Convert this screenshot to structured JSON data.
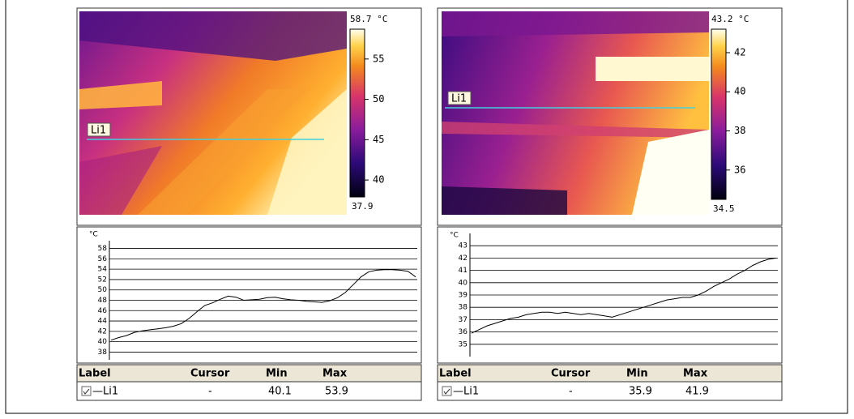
{
  "panels": [
    {
      "line_label": "Li1",
      "colorbar": {
        "max_label": "58.7 °C",
        "min_label": "37.9",
        "lim": [
          37.9,
          58.7
        ],
        "ticks": [
          55,
          50,
          45,
          40
        ]
      },
      "table": {
        "headers": [
          "Label",
          "Cursor",
          "Min",
          "Max"
        ],
        "rows": [
          [
            "—Li1",
            "-",
            "40.1",
            "53.9"
          ]
        ]
      }
    },
    {
      "line_label": "Li1",
      "colorbar": {
        "max_label": "43.2 °C",
        "min_label": "34.5",
        "lim": [
          34.5,
          43.2
        ],
        "ticks": [
          42,
          40,
          38,
          36
        ]
      },
      "table": {
        "headers": [
          "Label",
          "Cursor",
          "Min",
          "Max"
        ],
        "rows": [
          [
            "—Li1",
            "-",
            "35.9",
            "41.9"
          ]
        ]
      }
    }
  ],
  "chart_data": [
    {
      "type": "line",
      "y_label": "°C",
      "color": "#000000",
      "ylim": [
        36.5,
        59.5
      ],
      "yticks": [
        38,
        40,
        42,
        44,
        46,
        48,
        50,
        52,
        54,
        56,
        58
      ],
      "grid": true,
      "values": [
        40.3,
        40.8,
        41.2,
        41.8,
        42.1,
        42.3,
        42.5,
        42.7,
        43.0,
        43.5,
        44.5,
        45.8,
        47.0,
        47.5,
        48.2,
        48.8,
        48.6,
        48.0,
        48.1,
        48.2,
        48.5,
        48.6,
        48.3,
        48.1,
        48.0,
        47.8,
        47.7,
        47.6,
        47.9,
        48.5,
        49.5,
        51.0,
        52.5,
        53.5,
        53.8,
        53.9,
        53.9,
        53.8,
        53.6,
        52.5
      ]
    },
    {
      "type": "line",
      "y_label": "°C",
      "color": "#000000",
      "ylim": [
        34,
        44
      ],
      "yticks": [
        35,
        36,
        37,
        38,
        39,
        40,
        41,
        42,
        43
      ],
      "grid": true,
      "values": [
        35.9,
        36.2,
        36.5,
        36.7,
        36.9,
        37.1,
        37.2,
        37.4,
        37.5,
        37.6,
        37.6,
        37.5,
        37.6,
        37.5,
        37.4,
        37.5,
        37.4,
        37.3,
        37.2,
        37.4,
        37.6,
        37.8,
        38.0,
        38.2,
        38.4,
        38.6,
        38.7,
        38.8,
        38.8,
        39.0,
        39.3,
        39.7,
        40.0,
        40.3,
        40.7,
        41.0,
        41.4,
        41.7,
        41.9,
        42.0
      ]
    }
  ]
}
